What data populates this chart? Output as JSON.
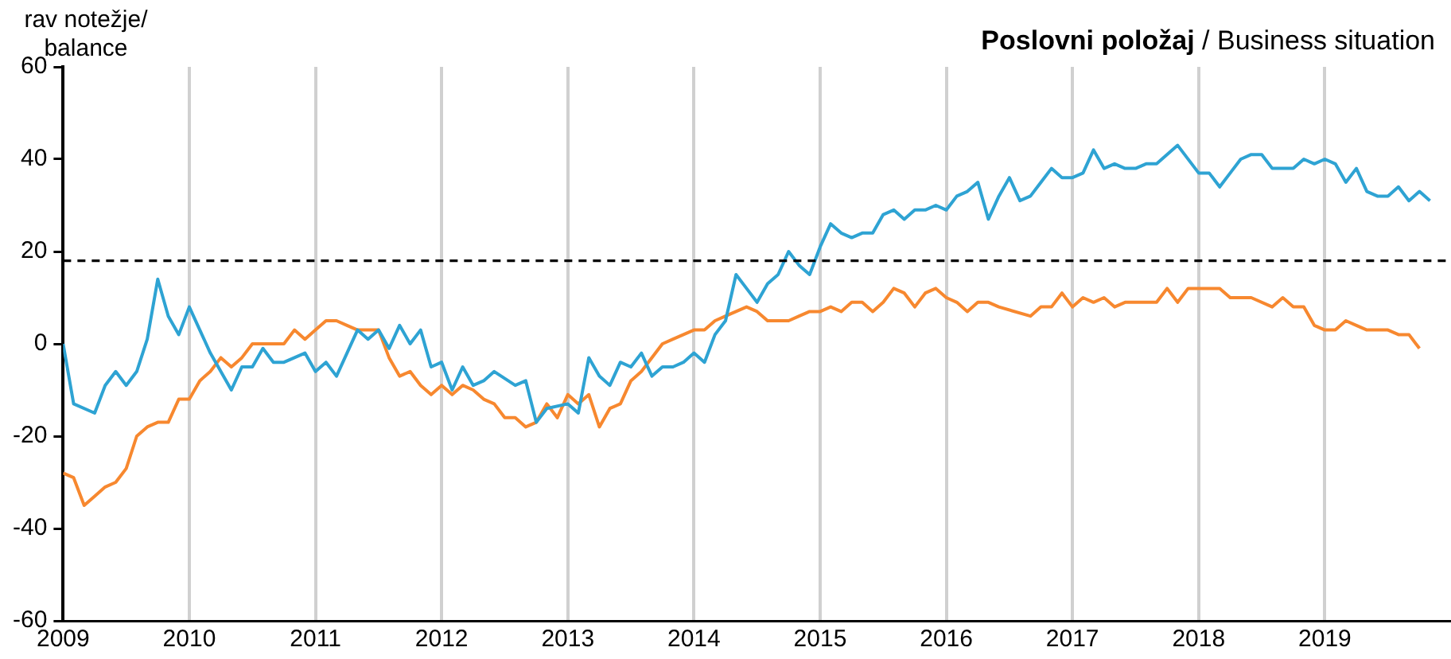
{
  "chart_data": {
    "type": "line",
    "title": "Poslovni položaj",
    "subtitle": "/ Business situation",
    "ylabel": "rav notežje/\nbalance",
    "xlim": [
      "2009-01",
      "2020-01"
    ],
    "xticks": [
      "2009",
      "2010",
      "2011",
      "2012",
      "2013",
      "2014",
      "2015",
      "2016",
      "2017",
      "2018",
      "2019"
    ],
    "ylim": [
      -60,
      60
    ],
    "yticks": [
      -60,
      -40,
      -20,
      0,
      20,
      40,
      60
    ],
    "grid": "x",
    "legend": false,
    "marker": "none",
    "line_style": "solid",
    "ref_lines": [
      {
        "axis": "y",
        "value": 18,
        "color": "#000000",
        "line_style": "dashed"
      }
    ],
    "series": [
      {
        "color": "#2ea3d3",
        "x": [
          "2009-01",
          "2009-02",
          "2009-04",
          "2009-05",
          "2009-06",
          "2009-07",
          "2009-08",
          "2009-09",
          "2009-10",
          "2009-11",
          "2009-12",
          "2010-01",
          "2010-02",
          "2010-03",
          "2010-05",
          "2010-06",
          "2010-07",
          "2010-08",
          "2010-09",
          "2010-10",
          "2010-12",
          "2011-01",
          "2011-02",
          "2011-03",
          "2011-05",
          "2011-06",
          "2011-07",
          "2011-08",
          "2011-09",
          "2011-10",
          "2011-11",
          "2011-12",
          "2012-01",
          "2012-02",
          "2012-03",
          "2012-04",
          "2012-05",
          "2012-06",
          "2012-08",
          "2012-09",
          "2012-10",
          "2012-11",
          "2013-01",
          "2013-02",
          "2013-03",
          "2013-04",
          "2013-05",
          "2013-06",
          "2013-07",
          "2013-08",
          "2013-09",
          "2013-10",
          "2013-11",
          "2013-12",
          "2014-01",
          "2014-02",
          "2014-03",
          "2014-04",
          "2014-05",
          "2014-06",
          "2014-07",
          "2014-08",
          "2014-09",
          "2014-10",
          "2014-11",
          "2014-12",
          "2015-01",
          "2015-02",
          "2015-03",
          "2015-04",
          "2015-05",
          "2015-06",
          "2015-07",
          "2015-08",
          "2015-09",
          "2015-10",
          "2015-11",
          "2015-12",
          "2016-01",
          "2016-02",
          "2016-03",
          "2016-04",
          "2016-05",
          "2016-06",
          "2016-07",
          "2016-08",
          "2016-09",
          "2016-10",
          "2016-11",
          "2016-12",
          "2017-01",
          "2017-02",
          "2017-03",
          "2017-04",
          "2017-05",
          "2017-06",
          "2017-07",
          "2017-08",
          "2017-09",
          "2017-11",
          "2018-01",
          "2018-02",
          "2018-03",
          "2018-04",
          "2018-05",
          "2018-06",
          "2018-07",
          "2018-08",
          "2018-10",
          "2018-11",
          "2018-12",
          "2019-01",
          "2019-02",
          "2019-03",
          "2019-04",
          "2019-05",
          "2019-06",
          "2019-07",
          "2019-08",
          "2019-09",
          "2019-10",
          "2019-11"
        ],
        "values": [
          0,
          -13,
          -15,
          -9,
          -6,
          -9,
          -6,
          1,
          14,
          6,
          2,
          8,
          3,
          -2,
          -10,
          -5,
          -5,
          -1,
          -4,
          -4,
          -2,
          -6,
          -4,
          -7,
          3,
          1,
          3,
          -1,
          4,
          0,
          3,
          -5,
          -4,
          -10,
          -5,
          -9,
          -8,
          -6,
          -9,
          -8,
          -17,
          -14,
          -13,
          -15,
          -3,
          -7,
          -9,
          -4,
          -5,
          -2,
          -7,
          -5,
          -5,
          -4,
          -2,
          -4,
          2,
          5,
          15,
          12,
          9,
          13,
          15,
          20,
          17,
          15,
          21,
          26,
          24,
          23,
          24,
          24,
          28,
          29,
          27,
          29,
          29,
          30,
          29,
          32,
          33,
          35,
          27,
          32,
          36,
          31,
          32,
          35,
          38,
          36,
          36,
          37,
          42,
          38,
          39,
          38,
          38,
          39,
          39,
          43,
          37,
          37,
          34,
          37,
          40,
          41,
          41,
          38,
          38,
          40,
          39,
          40,
          39,
          35,
          38,
          33,
          32,
          32,
          34,
          31,
          33,
          31
        ]
      },
      {
        "color": "#f7882f",
        "x": [
          "2009-01",
          "2009-02",
          "2009-03",
          "2009-04",
          "2009-05",
          "2009-06",
          "2009-07",
          "2009-08",
          "2009-09",
          "2009-10",
          "2009-11",
          "2009-12",
          "2010-01",
          "2010-02",
          "2010-03",
          "2010-04",
          "2010-05",
          "2010-06",
          "2010-07",
          "2010-08",
          "2010-09",
          "2010-10",
          "2010-11",
          "2010-12",
          "2011-01",
          "2011-02",
          "2011-03",
          "2011-04",
          "2011-05",
          "2011-07",
          "2011-08",
          "2011-09",
          "2011-10",
          "2011-11",
          "2011-12",
          "2012-01",
          "2012-02",
          "2012-03",
          "2012-04",
          "2012-05",
          "2012-06",
          "2012-07",
          "2012-08",
          "2012-09",
          "2012-10",
          "2012-11",
          "2012-12",
          "2013-01",
          "2013-02",
          "2013-03",
          "2013-04",
          "2013-05",
          "2013-06",
          "2013-07",
          "2013-08",
          "2013-10",
          "2013-11",
          "2013-12",
          "2014-01",
          "2014-02",
          "2014-03",
          "2014-04",
          "2014-05",
          "2014-06",
          "2014-07",
          "2014-08",
          "2014-09",
          "2014-10",
          "2014-11",
          "2014-12",
          "2015-01",
          "2015-02",
          "2015-03",
          "2015-04",
          "2015-05",
          "2015-06",
          "2015-07",
          "2015-08",
          "2015-09",
          "2015-10",
          "2015-11",
          "2015-12",
          "2016-01",
          "2016-02",
          "2016-03",
          "2016-04",
          "2016-05",
          "2016-06",
          "2016-09",
          "2016-10",
          "2016-11",
          "2016-12",
          "2017-01",
          "2017-02",
          "2017-03",
          "2017-04",
          "2017-05",
          "2017-06",
          "2017-07",
          "2017-09",
          "2017-10",
          "2017-11",
          "2017-12",
          "2018-01",
          "2018-02",
          "2018-03",
          "2018-04",
          "2018-05",
          "2018-06",
          "2018-08",
          "2018-09",
          "2018-10",
          "2018-11",
          "2018-12",
          "2019-01",
          "2019-02",
          "2019-03",
          "2019-04",
          "2019-05",
          "2019-06",
          "2019-07",
          "2019-08",
          "2019-09",
          "2019-10"
        ],
        "values": [
          -28,
          -29,
          -35,
          -33,
          -31,
          -30,
          -27,
          -20,
          -18,
          -17,
          -17,
          -12,
          -12,
          -8,
          -6,
          -3,
          -5,
          -3,
          0,
          0,
          0,
          0,
          3,
          1,
          3,
          5,
          5,
          4,
          3,
          3,
          -3,
          -7,
          -6,
          -9,
          -11,
          -9,
          -11,
          -9,
          -10,
          -12,
          -13,
          -16,
          -16,
          -18,
          -17,
          -13,
          -16,
          -11,
          -13,
          -11,
          -18,
          -14,
          -13,
          -8,
          -6,
          0,
          1,
          2,
          3,
          3,
          5,
          6,
          7,
          8,
          7,
          5,
          5,
          5,
          6,
          7,
          7,
          8,
          7,
          9,
          9,
          7,
          9,
          12,
          11,
          8,
          11,
          12,
          10,
          9,
          7,
          9,
          9,
          8,
          6,
          8,
          8,
          11,
          8,
          10,
          9,
          10,
          8,
          9,
          9,
          9,
          12,
          9,
          12,
          12,
          12,
          12,
          10,
          10,
          10,
          8,
          10,
          8,
          8,
          4,
          3,
          3,
          5,
          4,
          3,
          3,
          3,
          2,
          2,
          -1
        ]
      }
    ]
  }
}
